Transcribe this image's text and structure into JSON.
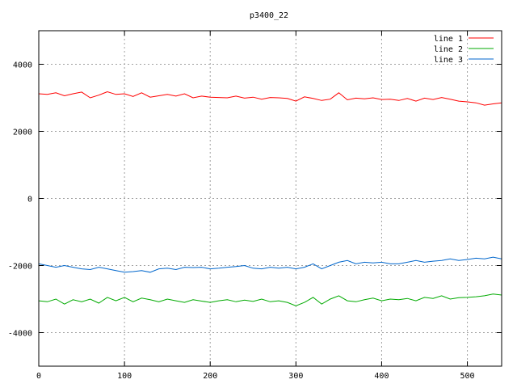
{
  "chart_data": {
    "type": "line",
    "title": "p3400_22",
    "xlabel": "",
    "ylabel": "",
    "xlim": [
      0,
      540
    ],
    "ylim": [
      -5000,
      5000
    ],
    "x_ticks": [
      0,
      100,
      200,
      300,
      400,
      500
    ],
    "y_ticks": [
      -4000,
      -2000,
      0,
      2000,
      4000
    ],
    "grid": true,
    "legend_position": "top-right",
    "x": [
      0,
      10,
      20,
      30,
      40,
      50,
      60,
      70,
      80,
      90,
      100,
      110,
      120,
      130,
      140,
      150,
      160,
      170,
      180,
      190,
      200,
      210,
      220,
      230,
      240,
      250,
      260,
      270,
      280,
      290,
      300,
      310,
      320,
      330,
      340,
      350,
      360,
      370,
      380,
      390,
      400,
      410,
      420,
      430,
      440,
      450,
      460,
      470,
      480,
      490,
      500,
      510,
      520,
      530,
      540
    ],
    "series": [
      {
        "name": "line 1",
        "color": "#ff0000",
        "values": [
          3120,
          3100,
          3150,
          3060,
          3120,
          3170,
          3000,
          3080,
          3180,
          3100,
          3120,
          3040,
          3150,
          3020,
          3060,
          3100,
          3050,
          3120,
          3000,
          3050,
          3020,
          3010,
          3000,
          3050,
          2990,
          3020,
          2960,
          3010,
          3000,
          2980,
          2900,
          3030,
          2980,
          2920,
          2960,
          3150,
          2940,
          2990,
          2970,
          3000,
          2950,
          2960,
          2920,
          2980,
          2900,
          2990,
          2950,
          3010,
          2960,
          2900,
          2880,
          2850,
          2780,
          2820,
          2850
        ]
      },
      {
        "name": "line 2",
        "color": "#00aa00",
        "values": [
          -3050,
          -3080,
          -3000,
          -3150,
          -3020,
          -3080,
          -3000,
          -3120,
          -2950,
          -3050,
          -2950,
          -3080,
          -2970,
          -3020,
          -3080,
          -3000,
          -3050,
          -3100,
          -3020,
          -3060,
          -3100,
          -3050,
          -3020,
          -3080,
          -3030,
          -3070,
          -3000,
          -3080,
          -3050,
          -3100,
          -3200,
          -3100,
          -2950,
          -3150,
          -3000,
          -2900,
          -3050,
          -3080,
          -3020,
          -2970,
          -3050,
          -3000,
          -3020,
          -2980,
          -3050,
          -2950,
          -2980,
          -2900,
          -3000,
          -2960,
          -2950,
          -2930,
          -2900,
          -2850,
          -2880
        ]
      },
      {
        "name": "line 3",
        "color": "#0066cc",
        "values": [
          -1950,
          -2000,
          -2050,
          -2000,
          -2050,
          -2100,
          -2120,
          -2050,
          -2100,
          -2150,
          -2200,
          -2180,
          -2150,
          -2200,
          -2100,
          -2080,
          -2120,
          -2050,
          -2060,
          -2050,
          -2100,
          -2080,
          -2050,
          -2030,
          -2000,
          -2080,
          -2100,
          -2050,
          -2080,
          -2050,
          -2100,
          -2050,
          -1950,
          -2100,
          -2000,
          -1900,
          -1850,
          -1950,
          -1900,
          -1920,
          -1900,
          -1950,
          -1950,
          -1900,
          -1850,
          -1900,
          -1870,
          -1850,
          -1800,
          -1850,
          -1820,
          -1780,
          -1800,
          -1750,
          -1800
        ]
      }
    ]
  }
}
